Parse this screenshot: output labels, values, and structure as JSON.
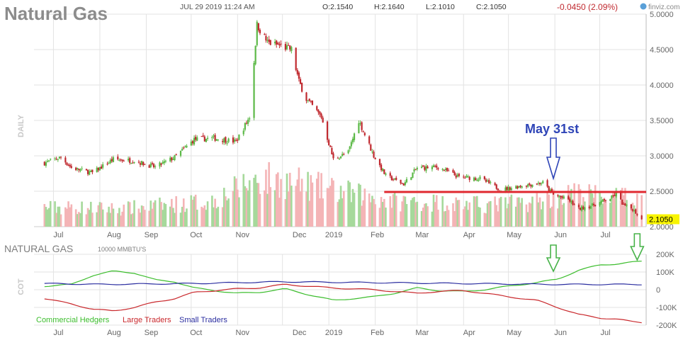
{
  "header": {
    "title": "Natural Gas",
    "timestamp": "JUL 29 2019 11:24 AM",
    "open": "O:2.1540",
    "high": "H:2.1640",
    "low": "L:2.1010",
    "close": "C:2.1050",
    "change": "-0.0450 (2.09%)",
    "brand": "finviz.com",
    "brand_icon": "finviz-logo-icon"
  },
  "colors": {
    "up": "#5cb947",
    "down": "#c0292f",
    "vol_up": "#a6d99b",
    "vol_down": "#f4b4b6",
    "support_line": "#e0282f",
    "annot_blue": "#2f45b7",
    "annot_green": "#48b34a",
    "commercial": "#3cbd2d",
    "large": "#c9282c",
    "small": "#2b2ea0",
    "grid": "#e3e3e3",
    "last_price_bg": "#f8f400"
  },
  "chart_data": [
    {
      "type": "candlestick",
      "title": "Natural Gas",
      "ylabel": "DAILY",
      "ylim": [
        2.0,
        5.0
      ],
      "y_ticks": [
        "5.0000",
        "4.5000",
        "4.0000",
        "3.5000",
        "3.0000",
        "2.5000",
        "2.0000"
      ],
      "x_tick_labels": [
        "Jul",
        "Aug",
        "Sep",
        "Oct",
        "Nov",
        "Dec",
        "2019",
        "Feb",
        "Mar",
        "Apr",
        "May",
        "Jun",
        "Jul"
      ],
      "last_price": "2.1050",
      "price_path": [
        [
          "2018-06-25",
          2.9
        ],
        [
          "2018-07-06",
          2.98
        ],
        [
          "2018-07-13",
          2.83
        ],
        [
          "2018-07-27",
          2.76
        ],
        [
          "2018-08-10",
          2.95
        ],
        [
          "2018-08-24",
          2.93
        ],
        [
          "2018-09-07",
          2.84
        ],
        [
          "2018-09-20",
          2.98
        ],
        [
          "2018-10-03",
          3.23
        ],
        [
          "2018-10-16",
          3.25
        ],
        [
          "2018-10-31",
          3.2
        ],
        [
          "2018-11-09",
          3.55
        ],
        [
          "2018-11-14",
          4.85
        ],
        [
          "2018-11-21",
          4.6
        ],
        [
          "2018-11-30",
          4.55
        ],
        [
          "2018-12-07",
          4.5
        ],
        [
          "2018-12-12",
          4.05
        ],
        [
          "2018-12-17",
          3.8
        ],
        [
          "2018-12-27",
          3.55
        ],
        [
          "2019-01-04",
          2.95
        ],
        [
          "2019-01-14",
          3.05
        ],
        [
          "2019-01-21",
          3.5
        ],
        [
          "2019-01-31",
          3.0
        ],
        [
          "2019-02-08",
          2.72
        ],
        [
          "2019-02-20",
          2.6
        ],
        [
          "2019-03-01",
          2.83
        ],
        [
          "2019-03-15",
          2.84
        ],
        [
          "2019-03-29",
          2.7
        ],
        [
          "2019-04-12",
          2.68
        ],
        [
          "2019-04-26",
          2.52
        ],
        [
          "2019-05-10",
          2.58
        ],
        [
          "2019-05-24",
          2.62
        ],
        [
          "2019-05-31",
          2.45
        ],
        [
          "2019-06-10",
          2.38
        ],
        [
          "2019-06-17",
          2.25
        ],
        [
          "2019-06-26",
          2.3
        ],
        [
          "2019-07-08",
          2.4
        ],
        [
          "2019-07-12",
          2.46
        ],
        [
          "2019-07-17",
          2.3
        ],
        [
          "2019-07-23",
          2.25
        ],
        [
          "2019-07-29",
          2.105
        ]
      ],
      "volume_relative": [
        [
          "2018-07",
          0.15
        ],
        [
          "2018-08",
          0.14
        ],
        [
          "2018-09",
          0.17
        ],
        [
          "2018-10",
          0.2
        ],
        [
          "2018-11",
          0.38
        ],
        [
          "2018-12",
          0.33
        ],
        [
          "2019-01",
          0.26
        ],
        [
          "2019-02",
          0.2
        ],
        [
          "2019-03",
          0.19
        ],
        [
          "2019-04",
          0.17
        ],
        [
          "2019-05",
          0.19
        ],
        [
          "2019-06",
          0.26
        ],
        [
          "2019-07",
          0.22
        ]
      ],
      "support_level": 2.49,
      "annotations": [
        {
          "text": "May 31st",
          "date": "2019-05-31",
          "arrow": "down"
        }
      ]
    },
    {
      "type": "line",
      "title": "NATURAL GAS",
      "subtitle": "10000 MMBTU'S",
      "ylabel": "COT",
      "ylim": [
        -200000,
        200000
      ],
      "y_ticks": [
        "200K",
        "100K",
        "0",
        "-100K",
        "-200K"
      ],
      "x_tick_labels": [
        "Jul",
        "Aug",
        "Sep",
        "Oct",
        "Nov",
        "Dec",
        "2019",
        "Feb",
        "Mar",
        "Apr",
        "May",
        "Jun",
        "Jul"
      ],
      "legend_position": "bottom-left",
      "series": [
        {
          "name": "Commercial Hedgers",
          "points": [
            [
              "2018-06-25",
              20000
            ],
            [
              "2018-07-13",
              30000
            ],
            [
              "2018-07-27",
              80000
            ],
            [
              "2018-08-10",
              105000
            ],
            [
              "2018-08-24",
              95000
            ],
            [
              "2018-09-07",
              55000
            ],
            [
              "2018-09-20",
              45000
            ],
            [
              "2018-10-03",
              10000
            ],
            [
              "2018-10-31",
              -20000
            ],
            [
              "2018-11-15",
              -15000
            ],
            [
              "2018-12-03",
              5000
            ],
            [
              "2018-12-17",
              -25000
            ],
            [
              "2019-01-04",
              -60000
            ],
            [
              "2019-01-31",
              -40000
            ],
            [
              "2019-02-14",
              -20000
            ],
            [
              "2019-03-01",
              10000
            ],
            [
              "2019-03-15",
              -5000
            ],
            [
              "2019-04-01",
              -10000
            ],
            [
              "2019-04-15",
              0
            ],
            [
              "2019-05-01",
              20000
            ],
            [
              "2019-05-20",
              40000
            ],
            [
              "2019-06-03",
              60000
            ],
            [
              "2019-06-17",
              110000
            ],
            [
              "2019-07-01",
              140000
            ],
            [
              "2019-07-12",
              145000
            ],
            [
              "2019-07-22",
              155000
            ],
            [
              "2019-07-29",
              160000
            ]
          ]
        },
        {
          "name": "Large Traders",
          "points": [
            [
              "2018-06-25",
              -50000
            ],
            [
              "2018-07-13",
              -80000
            ],
            [
              "2018-07-27",
              -110000
            ],
            [
              "2018-08-10",
              -120000
            ],
            [
              "2018-08-24",
              -100000
            ],
            [
              "2018-09-07",
              -70000
            ],
            [
              "2018-09-20",
              -50000
            ],
            [
              "2018-10-03",
              -15000
            ],
            [
              "2018-10-31",
              5000
            ],
            [
              "2018-11-15",
              10000
            ],
            [
              "2018-12-03",
              30000
            ],
            [
              "2018-12-17",
              20000
            ],
            [
              "2019-01-04",
              10000
            ],
            [
              "2019-01-31",
              0
            ],
            [
              "2019-02-14",
              -10000
            ],
            [
              "2019-03-01",
              -20000
            ],
            [
              "2019-03-15",
              -10000
            ],
            [
              "2019-04-01",
              -5000
            ],
            [
              "2019-04-15",
              -20000
            ],
            [
              "2019-05-01",
              -40000
            ],
            [
              "2019-05-20",
              -60000
            ],
            [
              "2019-06-03",
              -100000
            ],
            [
              "2019-06-17",
              -140000
            ],
            [
              "2019-07-01",
              -160000
            ],
            [
              "2019-07-12",
              -165000
            ],
            [
              "2019-07-22",
              -180000
            ],
            [
              "2019-07-29",
              -185000
            ]
          ]
        },
        {
          "name": "Small Traders",
          "points": [
            [
              "2018-06-25",
              35000
            ],
            [
              "2018-08-01",
              30000
            ],
            [
              "2018-10-01",
              35000
            ],
            [
              "2018-12-01",
              45000
            ],
            [
              "2019-02-01",
              40000
            ],
            [
              "2019-04-01",
              35000
            ],
            [
              "2019-06-01",
              30000
            ],
            [
              "2019-07-29",
              30000
            ]
          ]
        }
      ],
      "annotations": [
        {
          "date": "2019-05-31",
          "arrow": "down"
        },
        {
          "date": "2019-07-26",
          "arrow": "down"
        }
      ]
    }
  ]
}
